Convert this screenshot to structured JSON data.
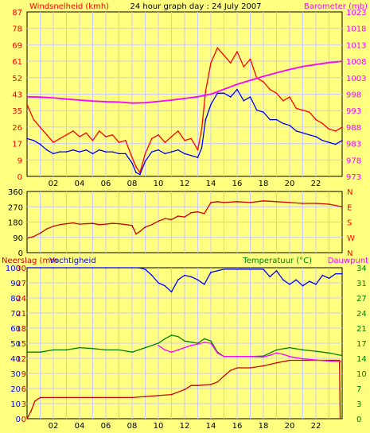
{
  "chart_data": [
    {
      "type": "line",
      "title": "24 hour graph day : 24 July 2007",
      "left_label": "Windsnelheid (kmh)",
      "right_label": "Barometer (mb)",
      "x_ticks": [
        "02",
        "04",
        "06",
        "08",
        "10",
        "12",
        "14",
        "16",
        "18",
        "20",
        "22"
      ],
      "x_range": [
        0,
        24
      ],
      "left_ticks": [
        0,
        9,
        17,
        26,
        35,
        43,
        52,
        61,
        69,
        78,
        87
      ],
      "left_range": [
        0,
        87
      ],
      "right_ticks": [
        973,
        978,
        983,
        988,
        993,
        998,
        1003,
        1008,
        1013,
        1018,
        1023
      ],
      "right_range": [
        973,
        1023
      ],
      "colors": {
        "gust": "#ff0000",
        "avg": "#0000ff",
        "barometer": "#ff00ff",
        "left_axis": "#ff0000",
        "right_axis": "#ff00ff"
      },
      "series": [
        {
          "role": "gust",
          "axis": "left",
          "x": [
            0,
            0.5,
            1,
            1.5,
            2,
            2.5,
            3,
            3.5,
            4,
            4.5,
            5,
            5.5,
            6,
            6.5,
            7,
            7.5,
            8,
            8.3,
            8.6,
            9,
            9.5,
            10,
            10.5,
            11,
            11.5,
            12,
            12.5,
            13,
            13.3,
            13.6,
            14,
            14.5,
            15,
            15.5,
            16,
            16.5,
            17,
            17.5,
            18,
            18.5,
            19,
            19.5,
            20,
            20.5,
            21,
            21.5,
            22,
            22.5,
            23,
            23.5,
            24
          ],
          "y": [
            38,
            30,
            26,
            22,
            18,
            20,
            22,
            24,
            21,
            23,
            19,
            24,
            21,
            22,
            18,
            19,
            10,
            5,
            2,
            12,
            20,
            22,
            18,
            21,
            24,
            19,
            20,
            14,
            25,
            45,
            60,
            68,
            64,
            60,
            66,
            58,
            62,
            52,
            50,
            46,
            44,
            40,
            42,
            36,
            35,
            34,
            30,
            28,
            25,
            24,
            26
          ]
        },
        {
          "role": "avg",
          "axis": "left",
          "x": [
            0,
            0.5,
            1,
            1.5,
            2,
            2.5,
            3,
            3.5,
            4,
            4.5,
            5,
            5.5,
            6,
            6.5,
            7,
            7.5,
            8,
            8.3,
            8.6,
            9,
            9.5,
            10,
            10.5,
            11,
            11.5,
            12,
            12.5,
            13,
            13.3,
            13.6,
            14,
            14.5,
            15,
            15.5,
            16,
            16.5,
            17,
            17.5,
            18,
            18.5,
            19,
            19.5,
            20,
            20.5,
            21,
            21.5,
            22,
            22.5,
            23,
            23.5,
            24
          ],
          "y": [
            20,
            19,
            17,
            14,
            12,
            13,
            13,
            14,
            13,
            14,
            12,
            14,
            13,
            13,
            12,
            12,
            7,
            2,
            1,
            8,
            13,
            14,
            12,
            13,
            14,
            12,
            11,
            10,
            15,
            30,
            38,
            44,
            44,
            42,
            46,
            40,
            42,
            35,
            34,
            30,
            30,
            28,
            27,
            24,
            23,
            22,
            21,
            19,
            18,
            17,
            19
          ]
        },
        {
          "role": "barometer",
          "axis": "right",
          "x": [
            0,
            1,
            2,
            3,
            4,
            5,
            6,
            7,
            8,
            9,
            10,
            11,
            12,
            13,
            14,
            15,
            16,
            17,
            18,
            19,
            20,
            21,
            22,
            23,
            24
          ],
          "y": [
            997.2,
            997.1,
            996.9,
            996.5,
            996.2,
            995.9,
            995.7,
            995.6,
            995.3,
            995.4,
            995.8,
            996.2,
            996.7,
            997.2,
            998.0,
            999.5,
            1001.0,
            1002.2,
            1003.4,
            1004.5,
            1005.5,
            1006.4,
            1007.0,
            1007.6,
            1008.0
          ]
        }
      ]
    },
    {
      "type": "line",
      "left_ticks": [
        0,
        90,
        180,
        270,
        360
      ],
      "left_range": [
        0,
        360
      ],
      "right_ticks": [
        "N",
        "W",
        "S",
        "E",
        "N"
      ],
      "x_range": [
        0,
        24
      ],
      "colors": {
        "direction": "#cc0000",
        "left_axis": "#000000",
        "right_axis": "#ff0000"
      },
      "series": [
        {
          "role": "direction",
          "x": [
            0,
            0.5,
            1,
            1.5,
            2,
            2.5,
            3,
            3.5,
            4,
            4.5,
            5,
            5.5,
            6,
            6.5,
            7,
            7.5,
            8,
            8.3,
            8.6,
            9,
            9.5,
            10,
            10.5,
            11,
            11.5,
            12,
            12.5,
            13,
            13.5,
            14,
            14.5,
            15,
            16,
            17,
            18,
            19,
            20,
            21,
            22,
            23,
            24
          ],
          "y": [
            85,
            95,
            115,
            140,
            155,
            165,
            170,
            175,
            168,
            170,
            172,
            165,
            168,
            172,
            170,
            165,
            160,
            110,
            125,
            150,
            165,
            185,
            200,
            195,
            215,
            210,
            235,
            240,
            230,
            295,
            300,
            295,
            300,
            295,
            305,
            300,
            295,
            290,
            290,
            285,
            270
          ]
        }
      ]
    },
    {
      "type": "line",
      "left_label_1": "Neerslag (mm",
      "left_label_2": "Vochtigheid",
      "right_label_1": "Temperatuur (°C)",
      "right_label_2": "Dauwpunt",
      "left_ticks_humidity": [
        0,
        10,
        20,
        30,
        40,
        50,
        60,
        70,
        80,
        90,
        100
      ],
      "left_ticks_rain": [
        0,
        3,
        6,
        9,
        12,
        15,
        18,
        21,
        24,
        27,
        30
      ],
      "right_ticks_temp": [
        0,
        3,
        7,
        10,
        14,
        17,
        21,
        24,
        27,
        31,
        34
      ],
      "x_ticks": [
        "02",
        "04",
        "06",
        "08",
        "10",
        "12",
        "14",
        "16",
        "18",
        "20",
        "22"
      ],
      "x_range": [
        0,
        24
      ],
      "colors": {
        "humidity": "#0000ff",
        "rain": "#cc0000",
        "temperature": "#008000",
        "dewpoint": "#ff00ff",
        "left_axis": "#0000ff",
        "right_axis": "#008000"
      },
      "series": [
        {
          "role": "humidity",
          "axis": "left",
          "x": [
            0,
            1,
            2,
            3,
            4,
            5,
            6,
            7,
            8,
            8.5,
            9,
            9.5,
            10,
            10.5,
            11,
            11.5,
            12,
            12.5,
            13,
            13.5,
            14,
            14.5,
            15,
            16,
            17,
            18,
            18.5,
            19,
            19.5,
            20,
            20.5,
            21,
            21.5,
            22,
            22.5,
            23,
            23.5,
            24
          ],
          "y": [
            100,
            100,
            100,
            100,
            100,
            100,
            100,
            100,
            100,
            100,
            99,
            95,
            90,
            88,
            84,
            92,
            95,
            94,
            92,
            89,
            97,
            98,
            99,
            99,
            99,
            99,
            94,
            98,
            92,
            89,
            92,
            88,
            91,
            89,
            95,
            93,
            96,
            96
          ]
        },
        {
          "role": "rain",
          "axis": "left",
          "x": [
            0,
            0.3,
            0.6,
            1,
            3,
            5,
            7,
            8,
            9,
            10,
            11,
            12,
            12.5,
            13,
            14,
            14.5,
            15,
            15.5,
            16,
            17,
            18,
            19,
            20,
            21,
            22,
            22.5,
            23,
            23.5,
            23.8,
            23.85
          ],
          "y": [
            0,
            1.5,
            3.5,
            4.2,
            4.2,
            4.2,
            4.2,
            4.2,
            4.4,
            4.6,
            4.8,
            5.8,
            6.6,
            6.6,
            6.8,
            7.3,
            8.5,
            9.6,
            10.1,
            10.1,
            10.5,
            11.1,
            11.6,
            11.6,
            11.6,
            11.6,
            11.6,
            11.6,
            11.6,
            0
          ]
        },
        {
          "role": "temperature",
          "axis": "right",
          "x": [
            0,
            1,
            2,
            3,
            4,
            5,
            6,
            7,
            8,
            9,
            10,
            10.5,
            11,
            11.5,
            12,
            13,
            13.5,
            14,
            14.5,
            15,
            16,
            17,
            18,
            18.5,
            19,
            20,
            21,
            22,
            23,
            24
          ],
          "y": [
            15.0,
            15.0,
            15.5,
            15.5,
            16.0,
            15.8,
            15.5,
            15.5,
            15.0,
            16.0,
            17.0,
            18.0,
            18.8,
            18.5,
            17.5,
            17.0,
            18.0,
            17.5,
            15.0,
            14.0,
            14.0,
            14.0,
            14.1,
            14.8,
            15.5,
            16.0,
            15.5,
            15.2,
            14.8,
            14.2
          ]
        },
        {
          "role": "dewpoint",
          "axis": "right",
          "x": [
            10,
            10.5,
            11,
            11.5,
            12,
            12.5,
            13,
            13.5,
            14,
            14.5,
            15,
            16,
            17,
            18,
            18.5,
            19,
            19.5,
            20,
            21,
            22,
            23,
            24
          ],
          "y": [
            16.5,
            15.5,
            15.0,
            15.5,
            16.0,
            16.5,
            16.8,
            17.2,
            17.0,
            14.8,
            14.0,
            14.0,
            14.0,
            13.9,
            14.3,
            14.8,
            14.5,
            14.0,
            13.5,
            13.2,
            13.0,
            12.8
          ]
        }
      ]
    }
  ]
}
